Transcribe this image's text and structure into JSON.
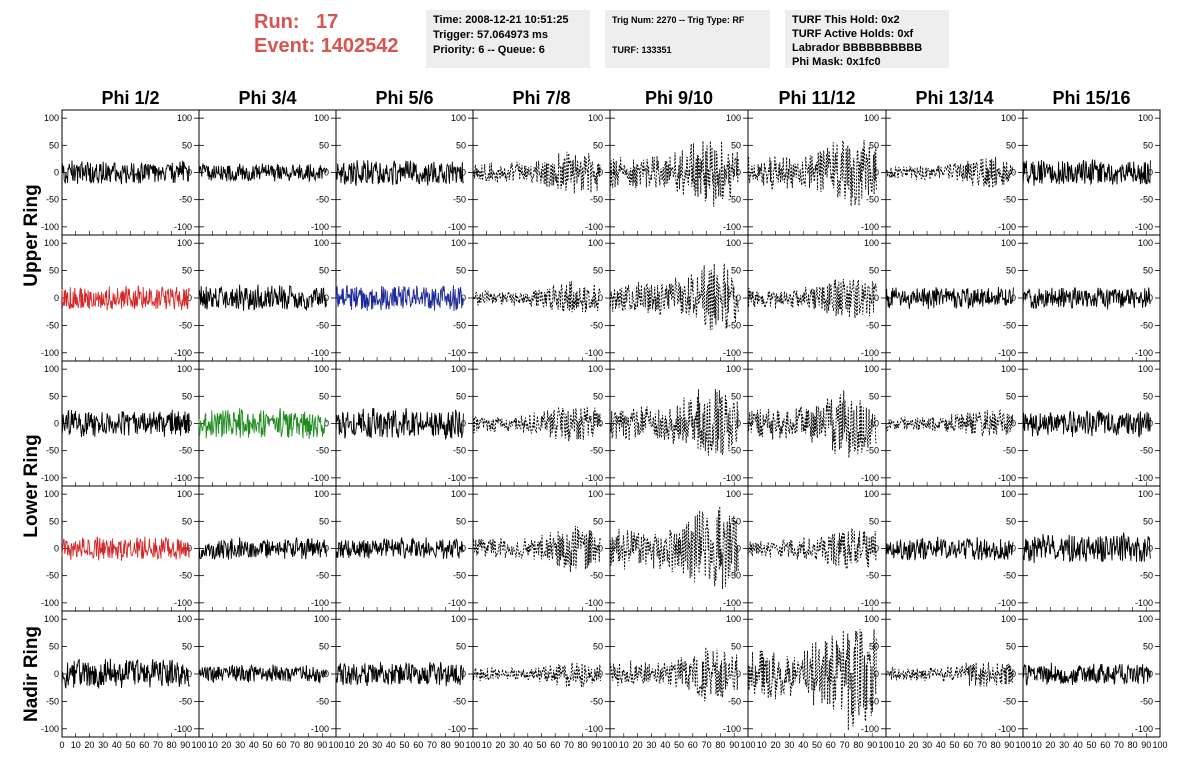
{
  "header": {
    "run_label": "Run:",
    "run_value": "17",
    "event_label": "Event:",
    "event_value": "1402542",
    "time": "Time: 2008-12-21 10:51:25",
    "trigger": "Trigger: 57.064973 ms",
    "priority": "Priority: 6 -- Queue: 6",
    "trig_num": "Trig Num: 2270 -- Trig Type: RF",
    "turf": "TURF: 133351",
    "turf_this_hold": "TURF This Hold: 0x2",
    "turf_active_holds": "TURF Active Holds: 0xf",
    "labrador": "Labrador BBBBBBBBBB",
    "phi_mask": "Phi Mask: 0x1fc0"
  },
  "chart_data": {
    "type": "line",
    "columns": [
      "Phi 1/2",
      "Phi 3/4",
      "Phi 5/6",
      "Phi 7/8",
      "Phi 9/10",
      "Phi 11/12",
      "Phi 13/14",
      "Phi 15/16"
    ],
    "rows": [
      "Upper Ring",
      "Upper Ring",
      "Lower Ring",
      "Lower Ring",
      "Nadir Ring"
    ],
    "ring_labels": [
      {
        "label": "Upper Ring",
        "rows": [
          0,
          1
        ]
      },
      {
        "label": "Lower Ring",
        "rows": [
          2,
          3
        ]
      },
      {
        "label": "Nadir Ring",
        "rows": [
          4,
          4
        ]
      }
    ],
    "xlim": [
      0,
      100
    ],
    "ylim": [
      -115,
      115
    ],
    "x_ticks": [
      0,
      10,
      20,
      30,
      40,
      50,
      60,
      70,
      80,
      90,
      100
    ],
    "x_tick_labels": [
      "0",
      "10",
      "20",
      "30",
      "40",
      "50",
      "60",
      "70",
      "80",
      "90",
      "100"
    ],
    "y_ticks": [
      100,
      50,
      0,
      -50,
      -100
    ],
    "y_tick_labels": [
      "100",
      "50",
      "0",
      "-50",
      "-100"
    ],
    "x_range_drawn": [
      0,
      93
    ],
    "amplitude": [
      [
        20,
        15,
        22,
        28,
        45,
        50,
        20,
        22
      ],
      [
        20,
        22,
        22,
        22,
        45,
        28,
        18,
        18
      ],
      [
        22,
        25,
        25,
        25,
        50,
        45,
        20,
        22
      ],
      [
        20,
        18,
        18,
        30,
        55,
        28,
        20,
        25
      ],
      [
        25,
        15,
        20,
        18,
        35,
        70,
        18,
        18
      ]
    ],
    "line_style": [
      [
        "solid",
        "solid",
        "solid",
        "dashed",
        "dashed",
        "dashed",
        "dashed",
        "solid"
      ],
      [
        "solid",
        "solid",
        "solid",
        "dashed",
        "dashed",
        "dashed",
        "solid",
        "solid"
      ],
      [
        "solid",
        "solid",
        "solid",
        "dashed",
        "dashed",
        "dashed",
        "dashed",
        "solid"
      ],
      [
        "solid",
        "solid",
        "solid",
        "dashed",
        "dashed",
        "dashed",
        "solid",
        "solid"
      ],
      [
        "solid",
        "solid",
        "solid",
        "dashed",
        "dashed",
        "dashed",
        "dashed",
        "solid"
      ]
    ],
    "line_color": [
      [
        "#000000",
        "#000000",
        "#000000",
        "#000000",
        "#000000",
        "#000000",
        "#000000",
        "#000000"
      ],
      [
        "#d62728",
        "#000000",
        "#1f2a9c",
        "#000000",
        "#000000",
        "#000000",
        "#000000",
        "#000000"
      ],
      [
        "#000000",
        "#1e8c1e",
        "#000000",
        "#000000",
        "#000000",
        "#000000",
        "#000000",
        "#000000"
      ],
      [
        "#d62728",
        "#000000",
        "#000000",
        "#000000",
        "#000000",
        "#000000",
        "#000000",
        "#000000"
      ],
      [
        "#000000",
        "#000000",
        "#000000",
        "#000000",
        "#000000",
        "#000000",
        "#000000",
        "#000000"
      ]
    ]
  }
}
